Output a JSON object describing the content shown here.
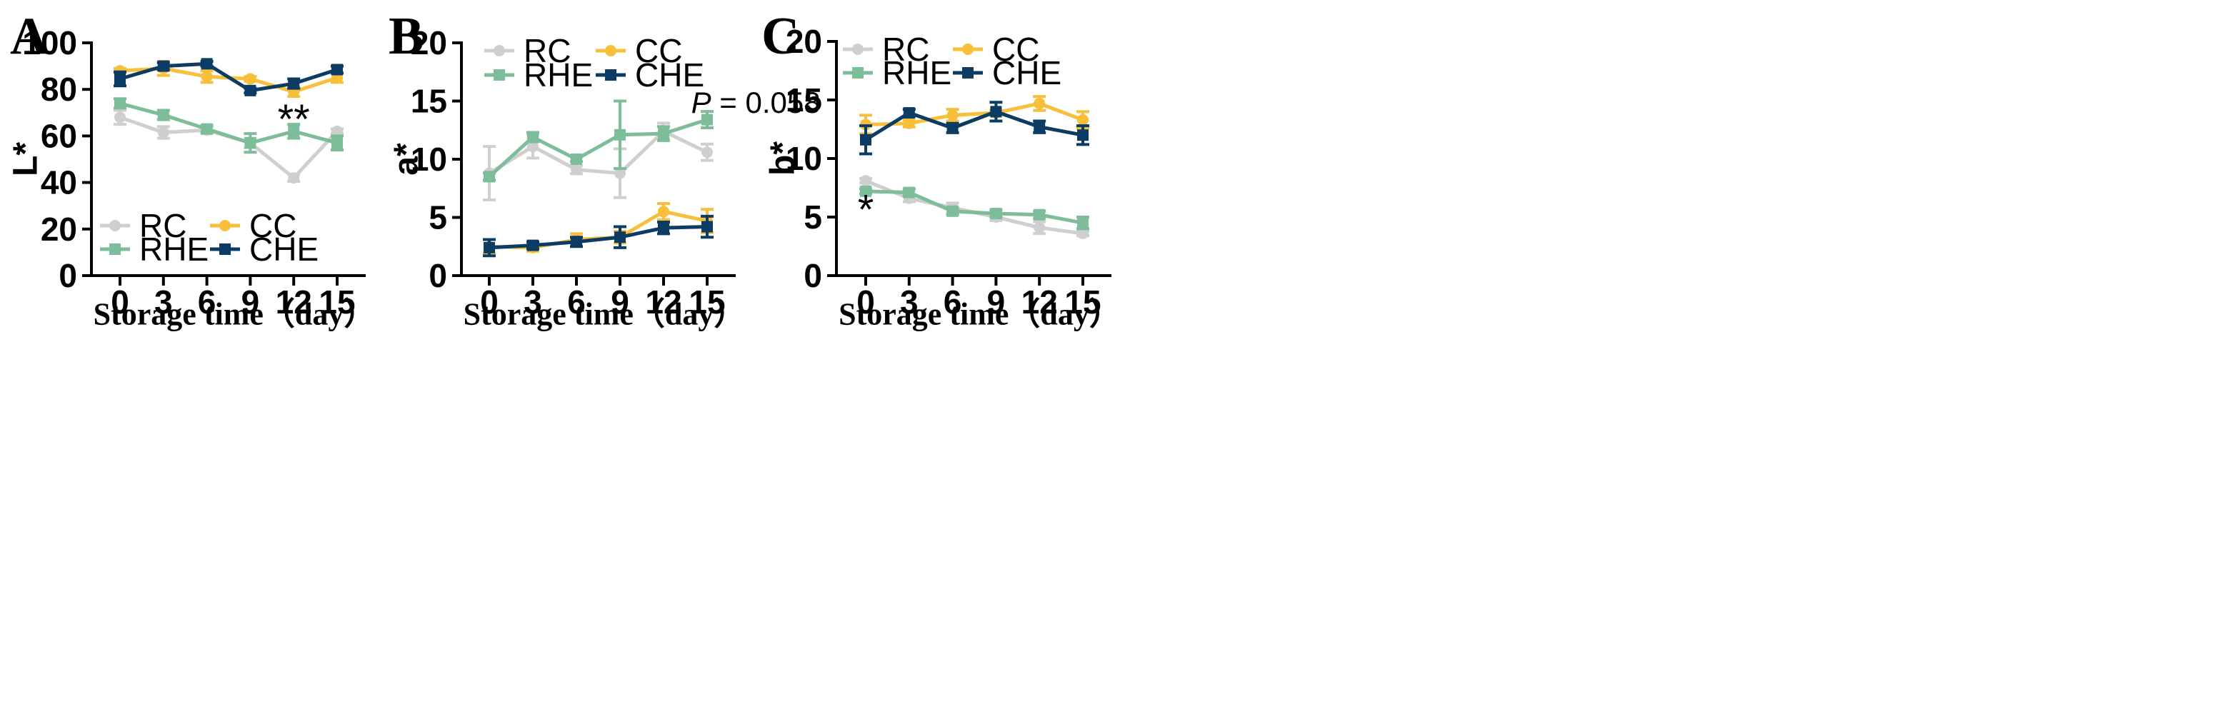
{
  "colors": {
    "RC": "#cfcfcf",
    "RHE": "#7dbd99",
    "CC": "#f7bf3a",
    "CHE": "#0c3c63"
  },
  "chart_data": [
    {
      "type": "line",
      "panel": "A",
      "ylabel": "L*",
      "xlabel": "Storage time（day）",
      "ylim": [
        0,
        100
      ],
      "yticks": [
        0,
        20,
        40,
        60,
        80,
        100
      ],
      "x": [
        0,
        3,
        6,
        9,
        12,
        15
      ],
      "legend_position": "bottom-left",
      "series": [
        {
          "name": "RC",
          "marker": "circle",
          "values": [
            68,
            61.5,
            62.5,
            57,
            42,
            62
          ],
          "errors": [
            3,
            2.5,
            1.5,
            2,
            1.5,
            1
          ]
        },
        {
          "name": "RHE",
          "marker": "square",
          "values": [
            74,
            69,
            63,
            57,
            62,
            57
          ],
          "errors": [
            2,
            2,
            1.5,
            4,
            3,
            3
          ]
        },
        {
          "name": "CC",
          "marker": "circle",
          "values": [
            88,
            89,
            85.5,
            84.5,
            79,
            85
          ],
          "errors": [
            1,
            3,
            2.5,
            1,
            2,
            2
          ]
        },
        {
          "name": "CHE",
          "marker": "square",
          "values": [
            84.5,
            90,
            91,
            79.5,
            82.5,
            88.5
          ],
          "errors": [
            3,
            1.5,
            1,
            1,
            2,
            1.5
          ]
        }
      ],
      "annotations": [
        {
          "text": "**",
          "x": 12,
          "y": 67
        }
      ]
    },
    {
      "type": "line",
      "panel": "B",
      "ylabel": "a*",
      "xlabel": "Storage time（day）",
      "ylim": [
        0,
        20
      ],
      "yticks": [
        0,
        5,
        10,
        15,
        20
      ],
      "x": [
        0,
        3,
        6,
        9,
        12,
        15
      ],
      "legend_position": "top-left",
      "series": [
        {
          "name": "RC",
          "marker": "circle",
          "values": [
            8.8,
            11.1,
            9.1,
            8.8,
            12.4,
            10.6
          ],
          "errors": [
            2.3,
            1,
            0.35,
            2.1,
            0.7,
            0.7
          ]
        },
        {
          "name": "RHE",
          "marker": "square",
          "values": [
            8.5,
            11.9,
            10.0,
            12.1,
            12.2,
            13.4
          ],
          "errors": [
            0.3,
            0.4,
            0.2,
            2.9,
            0.6,
            0.7
          ]
        },
        {
          "name": "CC",
          "marker": "circle",
          "values": [
            2.5,
            2.4,
            3.1,
            3.3,
            5.5,
            4.7
          ],
          "errors": [
            0.6,
            0.3,
            0.5,
            0.5,
            0.7,
            1.0
          ]
        },
        {
          "name": "CHE",
          "marker": "square",
          "values": [
            2.4,
            2.6,
            2.9,
            3.3,
            4.1,
            4.2
          ],
          "errors": [
            0.7,
            0.3,
            0.4,
            0.9,
            0.5,
            0.9
          ]
        }
      ],
      "annotations": [
        {
          "prefix": "P",
          "text": " = 0.058",
          "x": 13.9,
          "y": 14.9
        }
      ]
    },
    {
      "type": "line",
      "panel": "C",
      "ylabel": "b*",
      "xlabel": "Storage time（day）",
      "ylim": [
        0,
        20
      ],
      "yticks": [
        0,
        5,
        10,
        15,
        20
      ],
      "x": [
        0,
        3,
        6,
        9,
        12,
        15
      ],
      "legend_position": "top-left",
      "series": [
        {
          "name": "RC",
          "marker": "circle",
          "values": [
            8.1,
            6.6,
            5.8,
            5.0,
            4.1,
            3.6
          ],
          "errors": [
            0.2,
            0.3,
            0.4,
            0.3,
            0.5,
            0.2
          ]
        },
        {
          "name": "RHE",
          "marker": "square",
          "values": [
            7.2,
            7.1,
            5.5,
            5.3,
            5.2,
            4.5
          ],
          "errors": [
            0.2,
            0.3,
            0.3,
            0.3,
            0.3,
            0.5
          ]
        },
        {
          "name": "CC",
          "marker": "circle",
          "values": [
            12.9,
            13.0,
            13.7,
            13.9,
            14.7,
            13.3
          ],
          "errors": [
            0.8,
            0.3,
            0.5,
            0.2,
            0.6,
            0.7
          ]
        },
        {
          "name": "CHE",
          "marker": "square",
          "values": [
            11.6,
            13.9,
            12.6,
            14.0,
            12.7,
            12.0
          ],
          "errors": [
            1.2,
            0.3,
            0.4,
            0.8,
            0.5,
            0.8
          ]
        }
      ],
      "annotations": [
        {
          "text": "*",
          "x": 0,
          "y": 5.6
        }
      ]
    }
  ]
}
